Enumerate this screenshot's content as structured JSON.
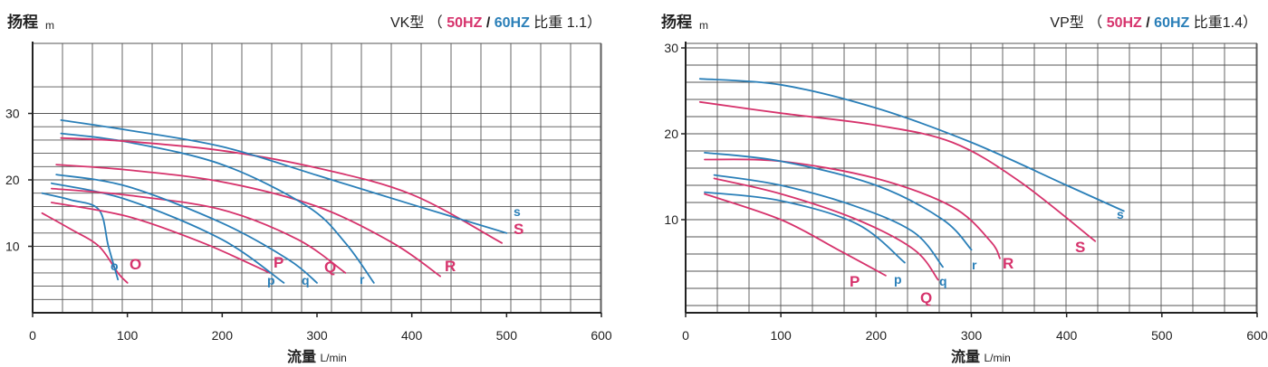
{
  "colors": {
    "fifty_hz": "#d6336c",
    "sixty_hz": "#2a7fb8",
    "axis": "#222222",
    "grid": "#555555"
  },
  "chart_data": [
    {
      "type": "line",
      "title_model": "VK型",
      "title_open": "（",
      "title_50": "50HZ",
      "title_sep": "/",
      "title_60": "60HZ",
      "title_gravity": "比重 1.1）",
      "ylabel": "扬程",
      "ylabel_unit": "m",
      "xlabel": "流量",
      "xlabel_unit": "L/min",
      "xlim": [
        0,
        600
      ],
      "ylim": [
        0,
        34
      ],
      "x_ticks": [
        0,
        100,
        200,
        300,
        400,
        500,
        600
      ],
      "y_ticks": [
        10,
        20,
        30
      ],
      "grid": true,
      "series": [
        {
          "name": "O",
          "hz": "50",
          "x": [
            10,
            40,
            70,
            90,
            100
          ],
          "y": [
            15,
            12.6,
            10,
            6,
            4.5
          ]
        },
        {
          "name": "o",
          "hz": "60",
          "x": [
            10,
            40,
            70,
            80,
            90
          ],
          "y": [
            18,
            17,
            15.5,
            10,
            5
          ]
        },
        {
          "name": "P",
          "hz": "50",
          "x": [
            20,
            100,
            180,
            250
          ],
          "y": [
            16.6,
            14.5,
            10.5,
            6
          ]
        },
        {
          "name": "p",
          "hz": "60",
          "x": [
            20,
            100,
            200,
            265
          ],
          "y": [
            19.5,
            17,
            11,
            4.5
          ]
        },
        {
          "name": "Q",
          "hz": "50",
          "x": [
            20,
            100,
            200,
            280,
            330
          ],
          "y": [
            18.7,
            17.7,
            15.5,
            11,
            6
          ]
        },
        {
          "name": "q",
          "hz": "60",
          "x": [
            25,
            100,
            200,
            270,
            300
          ],
          "y": [
            20.8,
            19,
            13.5,
            8,
            4.5
          ]
        },
        {
          "name": "R",
          "hz": "50",
          "x": [
            25,
            100,
            200,
            300,
            380,
            430
          ],
          "y": [
            22.3,
            21.5,
            19.7,
            16,
            10.5,
            5.5
          ]
        },
        {
          "name": "r",
          "hz": "60",
          "x": [
            30,
            100,
            200,
            290,
            330,
            360
          ],
          "y": [
            27,
            25.7,
            22.3,
            16,
            10.5,
            4.5
          ]
        },
        {
          "name": "S",
          "hz": "50",
          "x": [
            30,
            100,
            200,
            300,
            400,
            495
          ],
          "y": [
            26.3,
            25.8,
            24.4,
            21.8,
            17.8,
            10.5
          ]
        },
        {
          "name": "s",
          "hz": "60",
          "x": [
            30,
            100,
            200,
            300,
            400,
            500
          ],
          "y": [
            29,
            27.5,
            25,
            20.7,
            16.3,
            12
          ]
        }
      ],
      "curve_labels": [
        "O",
        "o",
        "P",
        "p",
        "Q",
        "q",
        "R",
        "r",
        "S",
        "s"
      ]
    },
    {
      "type": "line",
      "title_model": "VP型",
      "title_open": "（",
      "title_50": "50HZ",
      "title_sep": "/",
      "title_60": "60HZ",
      "title_gravity": "比重1.4）",
      "ylabel": "扬程",
      "ylabel_unit": "m",
      "xlabel": "流量",
      "xlabel_unit": "L/min",
      "xlim": [
        0,
        600
      ],
      "ylim": [
        0,
        31
      ],
      "x_ticks": [
        0,
        100,
        200,
        300,
        400,
        500,
        600
      ],
      "y_ticks": [
        10,
        20,
        30
      ],
      "grid": true,
      "series": [
        {
          "name": "P",
          "hz": "50",
          "x": [
            20,
            100,
            160,
            210
          ],
          "y": [
            13,
            10,
            6.5,
            3.5
          ]
        },
        {
          "name": "p",
          "hz": "60",
          "x": [
            20,
            100,
            180,
            230
          ],
          "y": [
            13.2,
            12.2,
            9.5,
            5
          ]
        },
        {
          "name": "Q",
          "hz": "50",
          "x": [
            30,
            100,
            180,
            240,
            265
          ],
          "y": [
            14.8,
            13,
            10,
            6.5,
            3
          ]
        },
        {
          "name": "q",
          "hz": "60",
          "x": [
            30,
            100,
            180,
            240,
            270
          ],
          "y": [
            15.2,
            14,
            11.5,
            8.5,
            4.5
          ]
        },
        {
          "name": "R",
          "hz": "50",
          "x": [
            20,
            100,
            200,
            280,
            320,
            330
          ],
          "y": [
            17,
            16.8,
            14.8,
            11.5,
            7.5,
            5.5
          ]
        },
        {
          "name": "r",
          "hz": "60",
          "x": [
            20,
            100,
            200,
            270,
            300
          ],
          "y": [
            17.8,
            16.8,
            14,
            10,
            6.5
          ]
        },
        {
          "name": "S",
          "hz": "50",
          "x": [
            15,
            100,
            200,
            280,
            350,
            430
          ],
          "y": [
            23.7,
            22.4,
            21,
            19,
            14.5,
            7.5
          ]
        },
        {
          "name": "s",
          "hz": "60",
          "x": [
            15,
            100,
            200,
            300,
            400,
            460
          ],
          "y": [
            26.4,
            25.7,
            23,
            19,
            14,
            11
          ]
        }
      ],
      "curve_labels": [
        "P",
        "p",
        "Q",
        "q",
        "R",
        "r",
        "S",
        "s"
      ]
    }
  ]
}
